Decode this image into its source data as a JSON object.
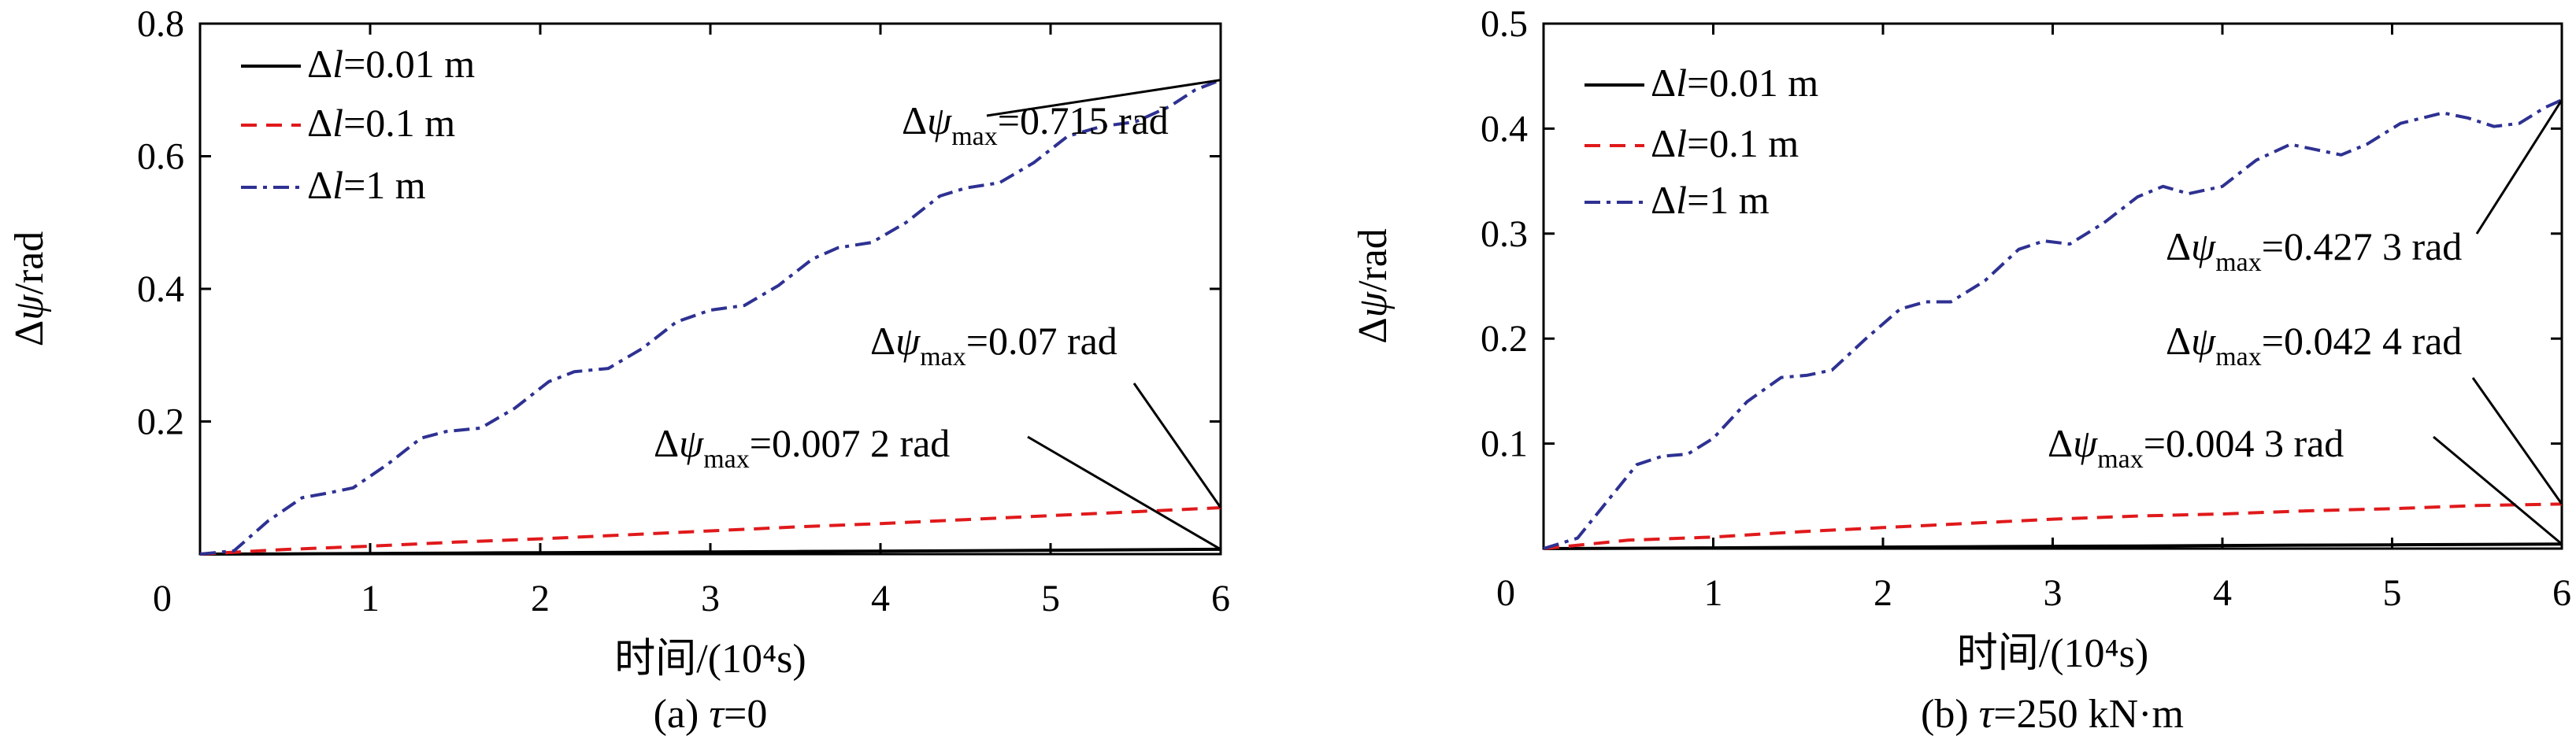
{
  "chart_data": [
    {
      "type": "line",
      "panel_caption": "(a) τ=0",
      "caption_prefix": "(a) ",
      "caption_symbol": "τ",
      "caption_suffix": "=0",
      "xlabel": "时间/(10⁴s)",
      "ylabel": "Δψ/rad",
      "xlim": [
        0,
        6
      ],
      "ylim": [
        0,
        0.8
      ],
      "x_ticks": [
        "0",
        "1",
        "2",
        "3",
        "4",
        "5",
        "6"
      ],
      "y_ticks": [
        "0.2",
        "0.4",
        "0.6",
        "0.8"
      ],
      "grid": false,
      "legend_position": "top-left",
      "series": [
        {
          "name": "Δl=0.01 m",
          "color": "#000000",
          "dash": "solid",
          "x": [
            0,
            0.5,
            1,
            1.5,
            2,
            2.5,
            3,
            3.5,
            4,
            4.5,
            5,
            5.5,
            6
          ],
          "y": [
            0,
            0.0004,
            0.0009,
            0.0015,
            0.0021,
            0.0027,
            0.0033,
            0.0039,
            0.0045,
            0.0051,
            0.0058,
            0.0065,
            0.0072
          ]
        },
        {
          "name": "Δl=0.1 m",
          "color": "#e0191b",
          "dash": "dash",
          "x": [
            0,
            0.5,
            1,
            1.5,
            2,
            2.5,
            3,
            3.5,
            4,
            4.5,
            5,
            5.5,
            6
          ],
          "y": [
            0,
            0.007,
            0.012,
            0.018,
            0.023,
            0.029,
            0.035,
            0.041,
            0.046,
            0.052,
            0.058,
            0.064,
            0.07
          ]
        },
        {
          "name": "Δl=1 m",
          "color": "#2e3192",
          "dash": "dashdot",
          "x": [
            0,
            0.2,
            0.4,
            0.6,
            0.75,
            0.9,
            1.1,
            1.3,
            1.45,
            1.65,
            1.85,
            2.05,
            2.2,
            2.4,
            2.6,
            2.8,
            3.0,
            3.2,
            3.4,
            3.6,
            3.75,
            3.95,
            4.15,
            4.35,
            4.5,
            4.7,
            4.9,
            5.1,
            5.3,
            5.5,
            5.7,
            5.85,
            6.0
          ],
          "y": [
            0,
            0.005,
            0.05,
            0.085,
            0.092,
            0.1,
            0.135,
            0.175,
            0.185,
            0.19,
            0.22,
            0.26,
            0.275,
            0.28,
            0.31,
            0.35,
            0.368,
            0.375,
            0.405,
            0.445,
            0.462,
            0.47,
            0.5,
            0.54,
            0.552,
            0.56,
            0.59,
            0.63,
            0.645,
            0.652,
            0.675,
            0.7,
            0.715
          ]
        }
      ],
      "annotations": [
        {
          "prefix": "Δ",
          "symbol": "ψ",
          "subscript": "max",
          "value": "=0.715 rad",
          "target_x": 6,
          "target_y": 0.715
        },
        {
          "prefix": "Δ",
          "symbol": "ψ",
          "subscript": "max",
          "value": "=0.07 rad",
          "target_x": 6,
          "target_y": 0.07
        },
        {
          "prefix": "Δ",
          "symbol": "ψ",
          "subscript": "max",
          "value": "=0.007 2 rad",
          "target_x": 6,
          "target_y": 0.0072
        }
      ]
    },
    {
      "type": "line",
      "panel_caption": "(b) τ=250 kN·m",
      "caption_prefix": "(b) ",
      "caption_symbol": "τ",
      "caption_suffix": "=250 kN·m",
      "xlabel": "时间/(10⁴s)",
      "ylabel": "Δψ/rad",
      "xlim": [
        0,
        6
      ],
      "ylim": [
        0,
        0.5
      ],
      "x_ticks": [
        "0",
        "1",
        "2",
        "3",
        "4",
        "5",
        "6"
      ],
      "y_ticks": [
        "0.1",
        "0.2",
        "0.3",
        "0.4",
        "0.5"
      ],
      "grid": false,
      "legend_position": "top-left",
      "series": [
        {
          "name": "Δl=0.01 m",
          "color": "#000000",
          "dash": "solid",
          "x": [
            0,
            0.5,
            1,
            1.5,
            2,
            2.5,
            3,
            3.5,
            4,
            4.5,
            5,
            5.5,
            6
          ],
          "y": [
            0,
            0.0003,
            0.0007,
            0.0011,
            0.0014,
            0.0018,
            0.0022,
            0.0025,
            0.0029,
            0.0033,
            0.0036,
            0.004,
            0.0043
          ]
        },
        {
          "name": "Δl=0.1 m",
          "color": "#e0191b",
          "dash": "dash",
          "x": [
            0,
            0.5,
            1,
            1.5,
            2,
            2.5,
            3,
            3.5,
            4,
            4.5,
            5,
            5.5,
            6
          ],
          "y": [
            0,
            0.008,
            0.011,
            0.016,
            0.02,
            0.024,
            0.028,
            0.031,
            0.033,
            0.036,
            0.038,
            0.041,
            0.0424
          ]
        },
        {
          "name": "Δl=1 m",
          "color": "#2e3192",
          "dash": "dashdot",
          "x": [
            0,
            0.2,
            0.4,
            0.55,
            0.7,
            0.85,
            1.0,
            1.2,
            1.4,
            1.55,
            1.7,
            1.9,
            2.1,
            2.25,
            2.4,
            2.6,
            2.8,
            2.95,
            3.1,
            3.3,
            3.5,
            3.65,
            3.8,
            4.0,
            4.2,
            4.4,
            4.55,
            4.7,
            4.85,
            5.05,
            5.3,
            5.45,
            5.6,
            5.75,
            5.9,
            6.0
          ],
          "y": [
            0,
            0.01,
            0.05,
            0.08,
            0.088,
            0.09,
            0.105,
            0.14,
            0.163,
            0.165,
            0.17,
            0.2,
            0.228,
            0.235,
            0.235,
            0.255,
            0.285,
            0.293,
            0.29,
            0.31,
            0.335,
            0.345,
            0.338,
            0.345,
            0.37,
            0.385,
            0.38,
            0.375,
            0.385,
            0.405,
            0.415,
            0.41,
            0.402,
            0.405,
            0.42,
            0.4273
          ]
        }
      ],
      "annotations": [
        {
          "prefix": "Δ",
          "symbol": "ψ",
          "subscript": "max",
          "value": "=0.427 3 rad",
          "target_x": 6,
          "target_y": 0.4273
        },
        {
          "prefix": "Δ",
          "symbol": "ψ",
          "subscript": "max",
          "value": "=0.042 4 rad",
          "target_x": 6,
          "target_y": 0.0424
        },
        {
          "prefix": "Δ",
          "symbol": "ψ",
          "subscript": "max",
          "value": "=0.004 3 rad",
          "target_x": 6,
          "target_y": 0.0043
        }
      ]
    }
  ]
}
